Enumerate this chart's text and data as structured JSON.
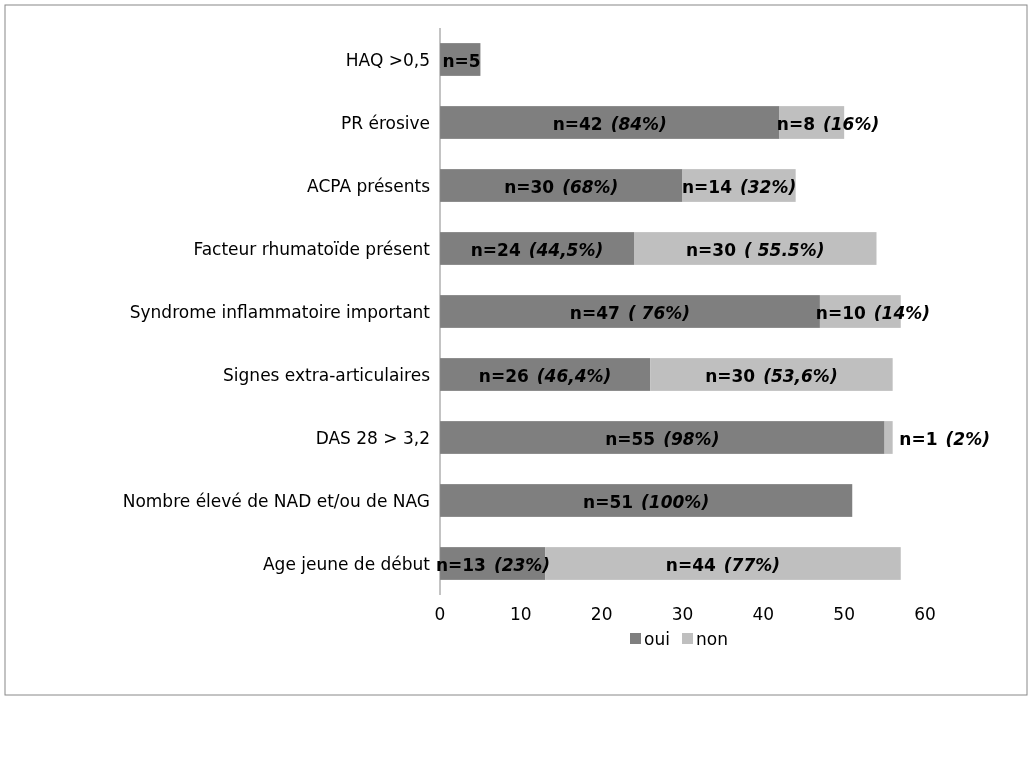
{
  "chart_data": {
    "type": "bar",
    "orientation": "horizontal",
    "stacked": true,
    "categories": [
      "HAQ >0,5",
      "PR érosive",
      "ACPA présents",
      "Facteur rhumatoïde présent",
      "Syndrome inflammatoire important",
      "Signes extra-articulaires",
      "DAS 28 > 3,2",
      "Nombre élevé de NAD et/ou de NAG",
      "Age jeune de début"
    ],
    "series": [
      {
        "name": "oui",
        "color": "#7f7f7f",
        "values": [
          5,
          42,
          30,
          24,
          47,
          26,
          55,
          51,
          13
        ],
        "value_labels": [
          "n=5",
          "n=42 (84%)",
          "n=30 (68%)",
          "n=24 (44,5%)",
          "n=47 ( 76%)",
          "n=26 (46,4%)",
          "n=55 (98%)",
          "n=51 (100%)",
          "n=13 (23%)"
        ]
      },
      {
        "name": "non",
        "color": "#bfbfbf",
        "values": [
          null,
          8,
          14,
          30,
          10,
          30,
          1,
          null,
          44
        ],
        "value_labels": [
          null,
          "n=8 (16%)",
          "n=14 (32%)",
          "n=30 ( 55.5%)",
          "n=10 (14%)",
          "n=30 (53,6%)",
          "n=1 (2%)",
          null,
          "n=44 (77%)"
        ]
      }
    ],
    "xlim": [
      0,
      60
    ],
    "xticks": [
      0,
      10,
      20,
      30,
      40,
      50,
      60
    ],
    "grid": false,
    "legend": "bottom"
  }
}
